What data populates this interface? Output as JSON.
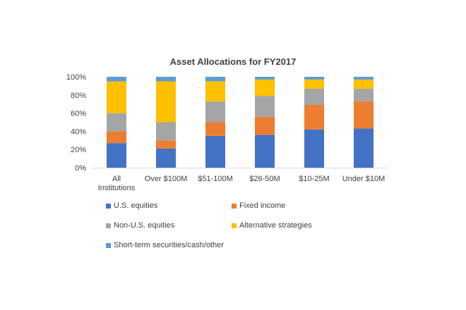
{
  "chart_data": {
    "type": "bar",
    "stacked": true,
    "title": "Asset Allocations for FY2017",
    "categories": [
      "All Institutions",
      "Over $100M",
      "$51-100M",
      "$26-50M",
      "$10-25M",
      "Under $10M"
    ],
    "category_lines": [
      [
        "All",
        "Institutions"
      ],
      [
        "Over $100M"
      ],
      [
        "$51-100M"
      ],
      [
        "$26-50M"
      ],
      [
        "$10-25M"
      ],
      [
        "Under $10M"
      ]
    ],
    "ylim": [
      0,
      100
    ],
    "yticks": [
      0,
      20,
      40,
      60,
      80,
      100
    ],
    "ytick_labels": [
      "0%",
      "20%",
      "40%",
      "60%",
      "80%",
      "100%"
    ],
    "grid": false,
    "legend_position": "bottom",
    "series": [
      {
        "name": "U.S. equities",
        "color": "#4472c4",
        "values": [
          27,
          21,
          35,
          36,
          42,
          43
        ]
      },
      {
        "name": "Fixed income",
        "color": "#ed7d31",
        "values": [
          13,
          9,
          15,
          20,
          27,
          30
        ]
      },
      {
        "name": "Non-U.S. equities",
        "color": "#a5a5a5",
        "values": [
          20,
          20,
          23,
          23,
          18,
          14
        ]
      },
      {
        "name": "Alternative strategies",
        "color": "#ffc000",
        "values": [
          35,
          45,
          22,
          18,
          10,
          10
        ]
      },
      {
        "name": "Short-term securities/cash/other",
        "color": "#5b9bd5",
        "values": [
          5,
          5,
          5,
          3,
          3,
          3
        ]
      }
    ]
  }
}
